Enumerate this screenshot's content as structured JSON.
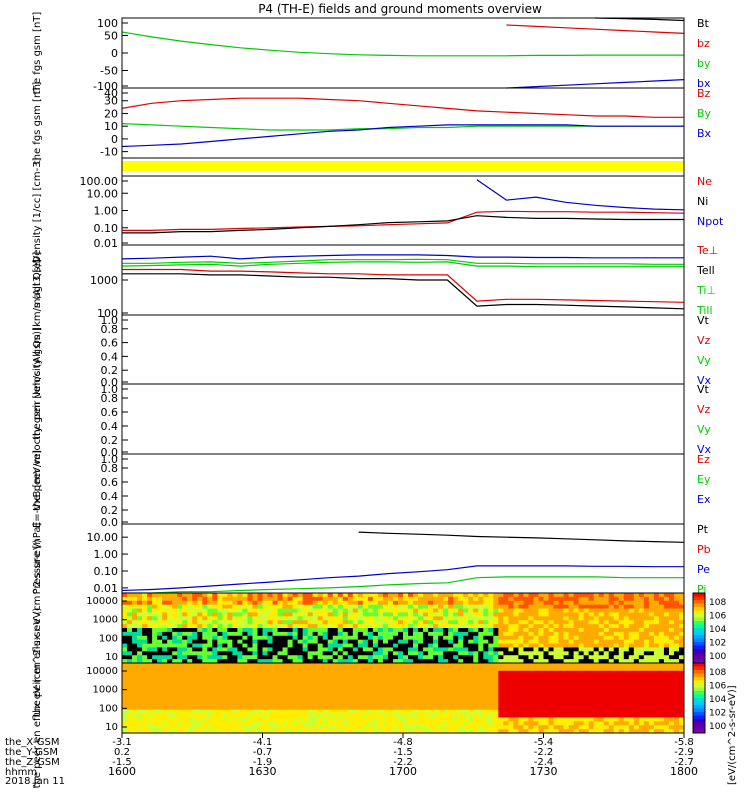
{
  "title": "P4 (TH-E) fields and ground moments overview",
  "colors": {
    "black": "#000000",
    "red": "#e00000",
    "green": "#00cc00",
    "blue": "#0000cc",
    "yellow": "#ffff00"
  },
  "time_ticks": [
    "1600",
    "1630",
    "1700",
    "1730",
    "1800"
  ],
  "position_rows": [
    {
      "label": "the_X-GSM",
      "values": [
        "-3.1",
        "-4.1",
        "-4.8",
        "-5.4",
        "-5.8"
      ]
    },
    {
      "label": "the_Y-GSM",
      "values": [
        "0.2",
        "-0.7",
        "-1.5",
        "-2.2",
        "-2.9"
      ]
    },
    {
      "label": "the_Z-GSM",
      "values": [
        "-1.5",
        "-1.9",
        "-2.2",
        "-2.4",
        "-2.7"
      ]
    },
    {
      "label": "hhmm",
      "values": []
    }
  ],
  "date_label": "2018 Jan 11",
  "colorbar_unit": "[eV/(cm^2-s-sr-eV)]",
  "chart_data": [
    {
      "type": "line",
      "ylabel": "the fgs gsm [nT]",
      "ylim": [
        -100,
        100
      ],
      "yticks": [
        "100",
        "50",
        "0",
        "-50",
        "-100"
      ],
      "series": [
        {
          "name": "Bt",
          "color": "black",
          "values": [
            null,
            null,
            null,
            null,
            null,
            null,
            null,
            null,
            null,
            null,
            null,
            null,
            null,
            null,
            null,
            null,
            100,
            98,
            96,
            93
          ]
        },
        {
          "name": "bz",
          "color": "red",
          "values": [
            null,
            null,
            null,
            null,
            null,
            null,
            null,
            null,
            null,
            null,
            null,
            null,
            null,
            80,
            76,
            72,
            68,
            64,
            60,
            56
          ]
        },
        {
          "name": "by",
          "color": "green",
          "values": [
            60,
            46,
            34,
            24,
            15,
            8,
            2,
            -2,
            -5,
            -7,
            -8,
            -8,
            -8,
            -8,
            -7,
            -7,
            -6,
            -6,
            -6,
            -6
          ]
        },
        {
          "name": "bx",
          "color": "blue",
          "values": [
            null,
            null,
            null,
            null,
            null,
            null,
            null,
            null,
            null,
            null,
            null,
            null,
            null,
            -100,
            -96,
            -92,
            -88,
            -84,
            -80,
            -76
          ]
        }
      ]
    },
    {
      "type": "line",
      "ylabel": "the fgs gsm [nT]",
      "ylim": [
        -15,
        40
      ],
      "yticks": [
        "40",
        "30",
        "20",
        "10",
        "0",
        "-10"
      ],
      "series": [
        {
          "name": "Bz",
          "color": "red",
          "values": [
            24,
            28,
            30,
            31,
            32,
            32,
            32,
            31,
            30,
            28,
            26,
            24,
            22,
            21,
            20,
            19,
            18,
            18,
            17,
            17
          ]
        },
        {
          "name": "By",
          "color": "green",
          "values": [
            12,
            11,
            10,
            9,
            8,
            7,
            7,
            7,
            8,
            8,
            9,
            9,
            10,
            10,
            10,
            10,
            10,
            10,
            10,
            10
          ]
        },
        {
          "name": "Bx",
          "color": "blue",
          "values": [
            -6,
            -5,
            -4,
            -2,
            0,
            2,
            4,
            6,
            7,
            9,
            10,
            11,
            11,
            11,
            11,
            11,
            10,
            10,
            10,
            10
          ]
        }
      ]
    },
    {
      "type": "line",
      "ylabel": "Density [1/cc] [cm-3]",
      "yscale": "log",
      "ylim": [
        0.01,
        100
      ],
      "yticks": [
        "100.00",
        "10.00",
        "1.00",
        "0.10",
        "0.01"
      ],
      "series": [
        {
          "name": "Ne",
          "color": "red",
          "values": [
            0.07,
            0.07,
            0.08,
            0.08,
            0.09,
            0.1,
            0.11,
            0.12,
            0.13,
            0.15,
            0.17,
            0.19,
            0.8,
            0.9,
            0.85,
            0.85,
            0.8,
            0.8,
            0.75,
            0.7
          ]
        },
        {
          "name": "Ni",
          "color": "black",
          "values": [
            0.05,
            0.05,
            0.06,
            0.06,
            0.07,
            0.08,
            0.1,
            0.12,
            0.15,
            0.2,
            0.22,
            0.25,
            0.5,
            0.4,
            0.35,
            0.35,
            0.32,
            0.3,
            0.3,
            0.3
          ]
        },
        {
          "name": "Npot",
          "color": "blue",
          "values": [
            null,
            null,
            null,
            null,
            null,
            null,
            null,
            null,
            null,
            null,
            null,
            null,
            60,
            4,
            6,
            3,
            2,
            1.5,
            1.2,
            1.1
          ]
        }
      ]
    },
    {
      "type": "line",
      "ylabel": "magt3 [eV]",
      "yscale": "log",
      "ylim": [
        100,
        10000
      ],
      "yticks": [
        "1000",
        "100"
      ],
      "series": [
        {
          "name": "Te⊥",
          "color": "red",
          "values": [
            2000,
            2000,
            2000,
            1800,
            1800,
            1700,
            1600,
            1500,
            1500,
            1400,
            1400,
            1400,
            250,
            280,
            280,
            270,
            260,
            250,
            240,
            230
          ]
        },
        {
          "name": "Tell",
          "color": "black",
          "values": [
            1500,
            1500,
            1500,
            1400,
            1400,
            1300,
            1200,
            1200,
            1100,
            1100,
            1000,
            1000,
            180,
            200,
            200,
            190,
            180,
            170,
            160,
            150
          ]
        },
        {
          "name": "Ti⊥",
          "color": "green",
          "values": [
            3000,
            3000,
            3200,
            3300,
            3000,
            3200,
            3500,
            3800,
            3800,
            3800,
            3900,
            3800,
            3000,
            3000,
            2900,
            2900,
            2900,
            2900,
            2800,
            2800
          ]
        },
        {
          "name": "Till",
          "color": "green",
          "values": [
            2500,
            2600,
            2700,
            2800,
            2500,
            2800,
            3000,
            3200,
            3300,
            3300,
            3200,
            3300,
            2500,
            2500,
            2400,
            2400,
            2400,
            2400,
            2400,
            2400
          ]
        },
        {
          "name": "",
          "color": "blue",
          "values": [
            4000,
            4200,
            4500,
            4800,
            4000,
            4500,
            4800,
            5000,
            5200,
            5200,
            5200,
            5000,
            4500,
            4500,
            4400,
            4400,
            4300,
            4300,
            4300,
            4300
          ]
        }
      ]
    },
    {
      "type": "line",
      "ylabel": "the peir velocity gsm [km/s (All Qs)]",
      "ylim": [
        0,
        1
      ],
      "yticks": [
        "1.0",
        "0.8",
        "0.6",
        "0.4",
        "0.2",
        "0.0"
      ],
      "series": [
        {
          "name": "Vt",
          "color": "black",
          "values": []
        },
        {
          "name": "Vz",
          "color": "red",
          "values": []
        },
        {
          "name": "Vy",
          "color": "green",
          "values": []
        },
        {
          "name": "Vx",
          "color": "blue",
          "values": []
        }
      ]
    },
    {
      "type": "line",
      "ylabel": "the peer velocity gsm [km/s (All Qs)]",
      "ylim": [
        0,
        1
      ],
      "yticks": [
        "1.0",
        "0.8",
        "0.6",
        "0.4",
        "0.2",
        "0.0"
      ],
      "series": [
        {
          "name": "Vt",
          "color": "black",
          "values": []
        },
        {
          "name": "Vz",
          "color": "red",
          "values": []
        },
        {
          "name": "Vy",
          "color": "green",
          "values": []
        },
        {
          "name": "Vx",
          "color": "blue",
          "values": []
        }
      ]
    },
    {
      "type": "line",
      "ylabel": "E=-VxB [mV/m]",
      "ylim": [
        0,
        1
      ],
      "yticks": [
        "1.0",
        "0.8",
        "0.6",
        "0.4",
        "0.2",
        "0.0"
      ],
      "series": [
        {
          "name": "Ez",
          "color": "red",
          "values": []
        },
        {
          "name": "Ey",
          "color": "green",
          "values": []
        },
        {
          "name": "Ex",
          "color": "blue",
          "values": []
        }
      ]
    },
    {
      "type": "line",
      "ylabel": "Pressure [nPa]",
      "yscale": "log",
      "ylim": [
        0.005,
        60
      ],
      "yticks": [
        "10.00",
        "1.00",
        "0.10",
        "0.01"
      ],
      "series": [
        {
          "name": "Pt",
          "color": "black",
          "values": [
            null,
            null,
            null,
            null,
            null,
            null,
            null,
            null,
            20,
            17,
            15,
            13,
            11,
            10,
            9,
            8,
            7,
            6,
            5.5,
            5
          ]
        },
        {
          "name": "Pb",
          "color": "red",
          "values": []
        },
        {
          "name": "Pe",
          "color": "blue",
          "values": [
            0.007,
            0.008,
            0.01,
            0.013,
            0.017,
            0.022,
            0.03,
            0.04,
            0.05,
            0.07,
            0.09,
            0.12,
            0.2,
            0.2,
            0.2,
            0.2,
            0.19,
            0.19,
            0.18,
            0.18
          ]
        },
        {
          "name": "Pi",
          "color": "green",
          "values": [
            0.005,
            0.005,
            0.006,
            0.006,
            0.007,
            0.008,
            0.009,
            0.01,
            0.012,
            0.015,
            0.018,
            0.02,
            0.04,
            0.045,
            0.045,
            0.045,
            0.045,
            0.04,
            0.04,
            0.04
          ]
        }
      ]
    },
    {
      "type": "heatmap",
      "ylabel": "the peir en eflux eV (cm^2-s-sr-eV)",
      "yscale": "log",
      "yticks": [
        "10000",
        "1000",
        "100",
        "10"
      ],
      "colorbar_ticks": [
        "10^8",
        "10^6",
        "10^4",
        "10^2",
        "10^0"
      ]
    },
    {
      "type": "heatmap",
      "ylabel": "the peer en eflux eV (cm^2-s-sr-eV)",
      "yscale": "log",
      "yticks": [
        "10000",
        "1000",
        "100",
        "10"
      ],
      "colorbar_ticks": [
        "10^8",
        "10^6",
        "10^4",
        "10^2",
        "10^0"
      ]
    }
  ]
}
